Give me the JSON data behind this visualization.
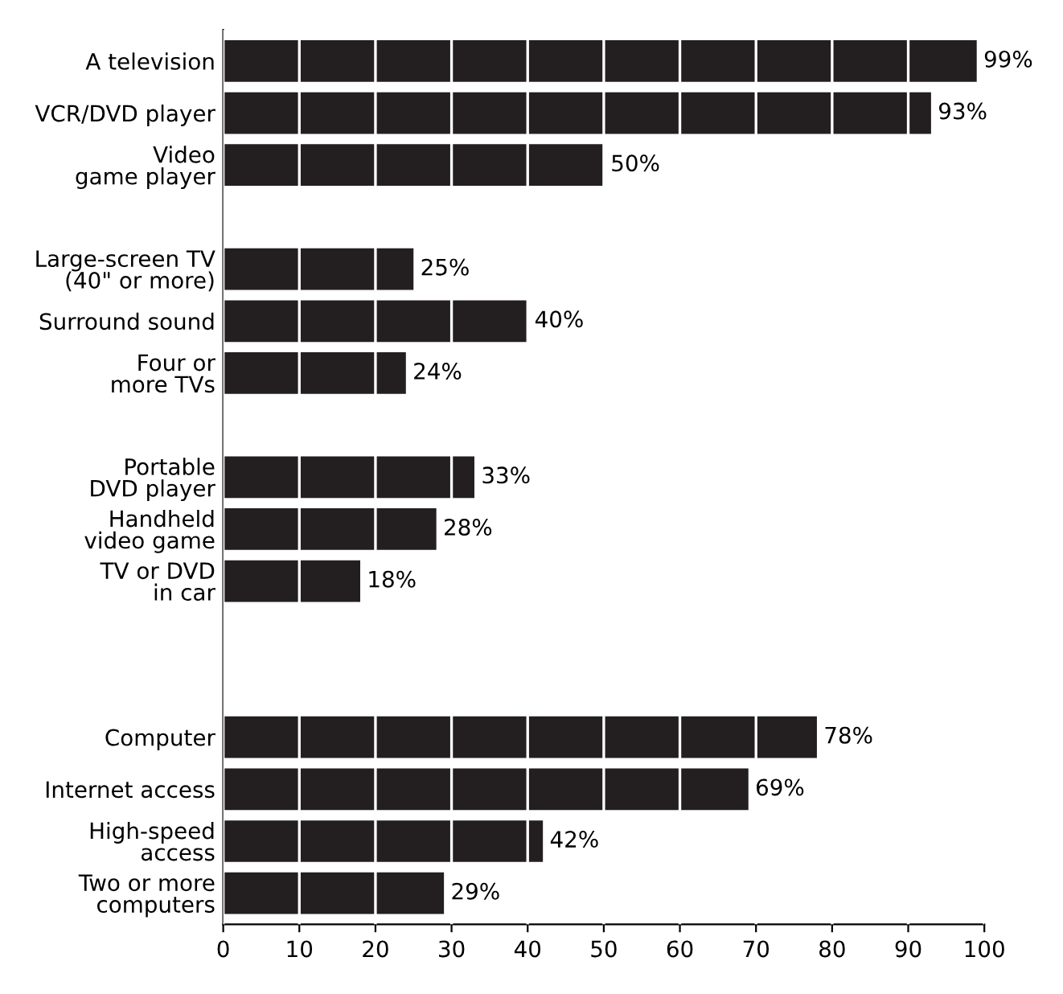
{
  "chart_data": {
    "type": "bar",
    "orientation": "horizontal",
    "categories": [
      "A television",
      "VCR/DVD player",
      "Video\ngame player",
      null,
      "Large-screen TV\n(40\" or more)",
      "Surround sound",
      "Four or\nmore TVs",
      null,
      "Portable\nDVD player",
      "Handheld\nvideo game",
      "TV or DVD\nin car",
      null,
      null,
      "Computer",
      "Internet access",
      "High-speed\naccess",
      "Two or more\ncomputers"
    ],
    "values": [
      99,
      93,
      50,
      null,
      25,
      40,
      24,
      null,
      33,
      28,
      18,
      null,
      null,
      78,
      69,
      42,
      29
    ],
    "value_labels": [
      "99%",
      "93%",
      "50%",
      null,
      "25%",
      "40%",
      "24%",
      null,
      "33%",
      "28%",
      "18%",
      null,
      null,
      "78%",
      "69%",
      "42%",
      "29%"
    ],
    "color": "#231f20",
    "xlim": [
      0,
      100
    ],
    "xticks": [
      0,
      10,
      20,
      30,
      40,
      50,
      60,
      70,
      80,
      90,
      100
    ],
    "grid": "x"
  }
}
